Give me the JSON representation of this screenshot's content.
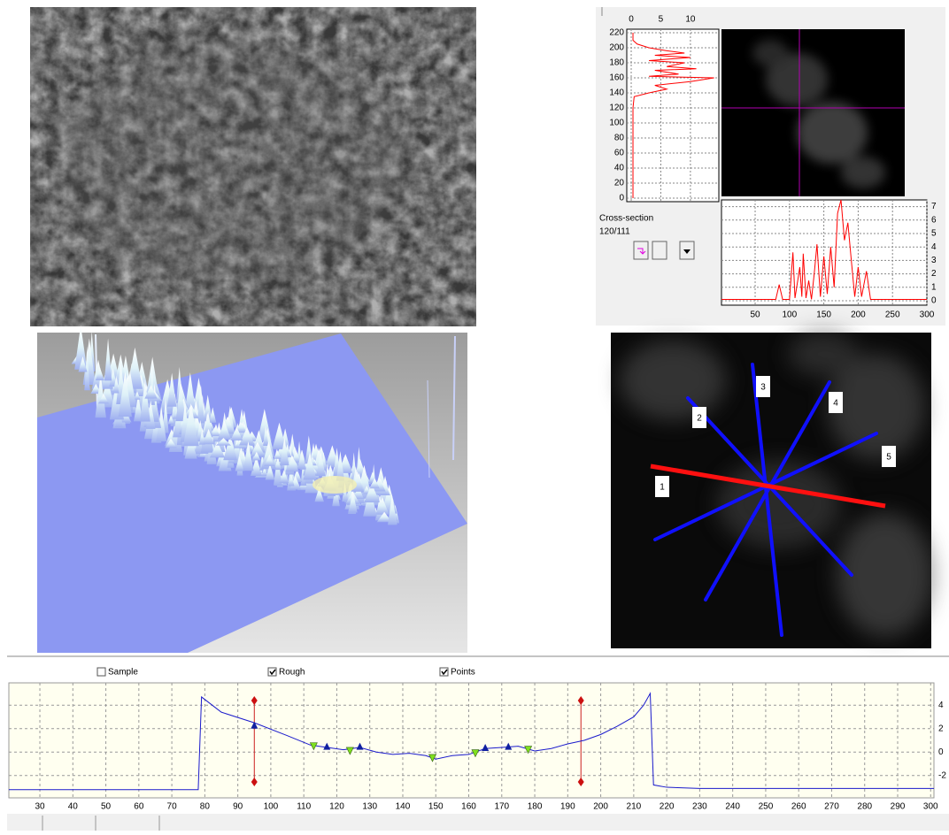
{
  "crosssection_panel": {
    "label": "Cross-section",
    "position": "120/111",
    "vertical_profile": {
      "color": "#ff0000",
      "xlim": [
        -0.75,
        14.8
      ],
      "ylim": [
        -4.7,
        224.7
      ],
      "xticks": [
        0,
        5,
        10
      ],
      "yticks": [
        0,
        20,
        40,
        60,
        80,
        100,
        120,
        140,
        160,
        180,
        200,
        220
      ],
      "y": [
        0,
        60,
        120,
        135,
        140,
        145,
        150,
        155,
        160,
        162,
        165,
        170,
        172,
        175,
        180,
        183,
        187,
        190,
        193,
        196,
        200,
        205,
        210,
        220
      ],
      "values": [
        0.3,
        0.3,
        0.3,
        0.5,
        3,
        6,
        4,
        10,
        14,
        3,
        8,
        4,
        11,
        6,
        9,
        3,
        10,
        4,
        9,
        6,
        3,
        1,
        0.3,
        0.3
      ]
    },
    "horizontal_profile": {
      "color": "#ff0000",
      "xlim": [
        1,
        300
      ],
      "ylim": [
        -0.33,
        7.5
      ],
      "xticks": [
        50,
        100,
        150,
        200,
        250,
        300
      ],
      "yticks": [
        0,
        1,
        2,
        3,
        4,
        5,
        6,
        7
      ],
      "x": [
        1,
        80,
        85,
        90,
        100,
        105,
        108,
        112,
        115,
        118,
        120,
        124,
        128,
        132,
        136,
        140,
        145,
        150,
        155,
        160,
        165,
        170,
        175,
        180,
        185,
        190,
        195,
        200,
        205,
        212,
        218,
        300
      ],
      "values": [
        0.1,
        0.1,
        1.2,
        0.1,
        0.1,
        3.6,
        0.2,
        1.5,
        2.5,
        0.3,
        3.5,
        0.2,
        1.5,
        0.1,
        2.0,
        4.2,
        0.3,
        3.3,
        0.5,
        4.0,
        1.0,
        6.5,
        7.5,
        4.5,
        5.8,
        3.0,
        0.3,
        2.5,
        0.3,
        2.2,
        0.1,
        0.1
      ]
    }
  },
  "radial_lines": {
    "labels": [
      "1",
      "2",
      "3",
      "4",
      "5"
    ]
  },
  "profile_panel": {
    "checkboxes": [
      {
        "label": "Sample",
        "checked": false
      },
      {
        "label": "Rough",
        "checked": true
      },
      {
        "label": "Points",
        "checked": true
      }
    ],
    "chart": {
      "color": "#1a1acc",
      "xlim": [
        20.6,
        301
      ],
      "ylim": [
        -3.9,
        5.9
      ],
      "xticks": [
        30,
        40,
        50,
        60,
        70,
        80,
        90,
        100,
        110,
        120,
        130,
        140,
        150,
        160,
        170,
        180,
        190,
        200,
        210,
        220,
        230,
        240,
        250,
        260,
        270,
        280,
        290,
        300
      ],
      "yticks": [
        4,
        2,
        0,
        -2
      ],
      "x": [
        20.6,
        78,
        79,
        85,
        95,
        105,
        112,
        117,
        122,
        127,
        132,
        137,
        142,
        147,
        150,
        155,
        160,
        165,
        170,
        175,
        180,
        185,
        190,
        195,
        200,
        205,
        210,
        213,
        215,
        216,
        220,
        230,
        301
      ],
      "values": [
        -3.2,
        -3.2,
        4.7,
        3.4,
        2.5,
        1.4,
        0.6,
        0.4,
        0.2,
        0.4,
        0.0,
        -0.2,
        -0.1,
        -0.3,
        -0.6,
        -0.3,
        -0.2,
        0.3,
        0.4,
        0.5,
        0.1,
        0.3,
        0.7,
        1.0,
        1.5,
        2.2,
        3.0,
        4.0,
        5.0,
        -2.8,
        -3.0,
        -3.1,
        -3.1
      ],
      "cursor_x": [
        95,
        194
      ],
      "valleys": {
        "x": [
          113,
          124,
          149,
          162,
          178
        ],
        "values": [
          0.5,
          0.1,
          -0.5,
          -0.1,
          0.2
        ]
      },
      "peaks": {
        "x": [
          95,
          117,
          127,
          165,
          172
        ],
        "values": [
          2.3,
          0.5,
          0.5,
          0.4,
          0.5
        ]
      }
    }
  }
}
